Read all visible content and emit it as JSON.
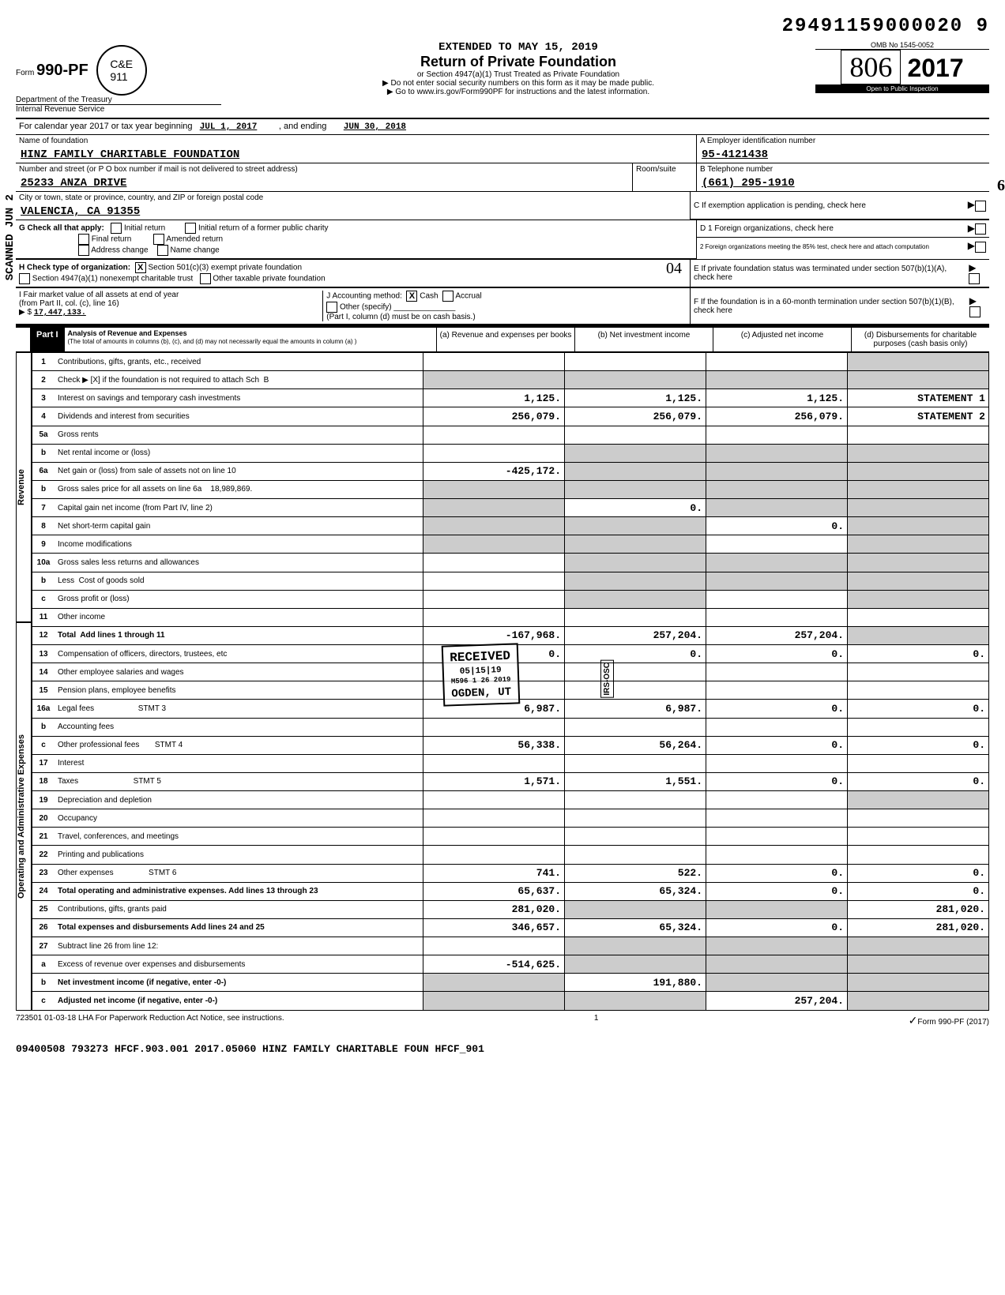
{
  "doc_number": "29491159000020 9",
  "extended_to": "EXTENDED TO MAY 15, 2019",
  "form": {
    "prefix": "Form",
    "number": "990-PF",
    "dept": "Department of the Treasury",
    "irs": "Internal Revenue Service",
    "title": "Return of Private Foundation",
    "subtitle1": "or Section 4947(a)(1) Trust Treated as Private Foundation",
    "subtitle2": "▶ Do not enter social security numbers on this form as it may be made public.",
    "subtitle3": "▶ Go to www.irs.gov/Form990PF for instructions and the latest information.",
    "omb": "OMB No  1545-0052",
    "year": "2017",
    "open": "Open to Public Inspection",
    "script_num": "806"
  },
  "cal_year": {
    "prefix": "For calendar year 2017 or tax year beginning",
    "begin": "JUL 1, 2017",
    "mid": ", and ending",
    "end": "JUN 30, 2018"
  },
  "foundation": {
    "name_label": "Name of foundation",
    "name": "HINZ FAMILY CHARITABLE FOUNDATION",
    "addr_label": "Number and street (or P O  box number if mail is not delivered to street address)",
    "room_label": "Room/suite",
    "addr": "25233 ANZA DRIVE",
    "city_label": "City or town, state or province, country, and ZIP or foreign postal code",
    "city": "VALENCIA, CA  91355"
  },
  "ein": {
    "label": "A Employer identification number",
    "value": "95-4121438"
  },
  "phone": {
    "label": "B Telephone number",
    "value": "(661) 295-1910"
  },
  "c_label": "C  If exemption application is pending, check here",
  "g": {
    "label": "G  Check all that apply:",
    "opts": [
      "Initial return",
      "Final return",
      "Address change",
      "Initial return of a former public charity",
      "Amended return",
      "Name change"
    ]
  },
  "d1": "D 1  Foreign organizations, check here",
  "d2": "2  Foreign organizations meeting the 85% test, check here and attach computation",
  "h": {
    "label": "H  Check type of organization:",
    "opt1": "Section 501(c)(3) exempt private foundation",
    "opt2": "Section 4947(a)(1) nonexempt charitable trust",
    "opt3": "Other taxable private foundation"
  },
  "e_label": "E  If private foundation status was terminated under section 507(b)(1)(A), check here",
  "i": {
    "label": "I  Fair market value of all assets at end of year",
    "sub": "(from Part II, col. (c), line 16)",
    "arrow": "▶ $",
    "value": "17,447,133."
  },
  "j": {
    "label": "J  Accounting method:",
    "cash": "Cash",
    "accrual": "Accrual",
    "other": "Other (specify)",
    "note": "(Part I, column (d) must be on cash basis.)"
  },
  "f_label": "F  If the foundation is in a 60-month termination under section 507(b)(1)(B), check here",
  "part1": {
    "label": "Part I",
    "title": "Analysis of Revenue and Expenses",
    "note": "(The total of amounts in columns (b), (c), and (d) may not necessarily equal the amounts in column (a) )",
    "cols": {
      "a": "(a) Revenue and expenses per books",
      "b": "(b) Net investment income",
      "c": "(c) Adjusted net income",
      "d": "(d) Disbursements for charitable purposes (cash basis only)"
    }
  },
  "side_revenue": "Revenue",
  "side_expenses": "Operating and Administrative Expenses",
  "lines": [
    {
      "n": "1",
      "label": "Contributions, gifts, grants, etc., received",
      "a": "",
      "b": "",
      "c": "",
      "d": "",
      "d_shade": true
    },
    {
      "n": "2",
      "label": "Check ▶ [X] if the foundation is not required to attach Sch  B",
      "a": "",
      "b": "",
      "c": "",
      "d": "",
      "all_shade": true
    },
    {
      "n": "3",
      "label": "Interest on savings and temporary cash investments",
      "a": "1,125.",
      "b": "1,125.",
      "c": "1,125.",
      "d": "STATEMENT 1",
      "d_shade": false
    },
    {
      "n": "4",
      "label": "Dividends and interest from securities",
      "a": "256,079.",
      "b": "256,079.",
      "c": "256,079.",
      "d": "STATEMENT 2",
      "d_shade": false
    },
    {
      "n": "5a",
      "label": "Gross rents",
      "a": "",
      "b": "",
      "c": "",
      "d": "",
      "d_shade": false
    },
    {
      "n": "b",
      "label": "Net rental income or (loss)",
      "a": "",
      "b": "",
      "c": "",
      "d": "",
      "bcd_shade": true
    },
    {
      "n": "6a",
      "label": "Net gain or (loss) from sale of assets not on line 10",
      "a": "-425,172.",
      "b": "",
      "c": "",
      "d": "",
      "bcd_shade": true
    },
    {
      "n": "b",
      "label": "Gross sales price for all assets on line 6a    18,989,869.",
      "a": "",
      "b": "",
      "c": "",
      "d": "",
      "all_shade": true
    },
    {
      "n": "7",
      "label": "Capital gain net income (from Part IV, line 2)",
      "a": "",
      "b": "0.",
      "c": "",
      "d": "",
      "acd_shade": true
    },
    {
      "n": "8",
      "label": "Net short-term capital gain",
      "a": "",
      "b": "",
      "c": "0.",
      "d": "",
      "abd_shade": true
    },
    {
      "n": "9",
      "label": "Income modifications",
      "a": "",
      "b": "",
      "c": "",
      "d": "",
      "abd_shade": true
    },
    {
      "n": "10a",
      "label": "Gross sales less returns and allowances",
      "a": "",
      "b": "",
      "c": "",
      "d": "",
      "bcd_shade": true
    },
    {
      "n": "b",
      "label": "Less  Cost of goods sold",
      "a": "",
      "b": "",
      "c": "",
      "d": "",
      "bcd_shade": true
    },
    {
      "n": "c",
      "label": "Gross profit or (loss)",
      "a": "",
      "b": "",
      "c": "",
      "d": "",
      "bd_shade": true
    },
    {
      "n": "11",
      "label": "Other income",
      "a": "",
      "b": "",
      "c": "",
      "d": "",
      "d_shade": false
    },
    {
      "n": "12",
      "label": "Total  Add lines 1 through 11",
      "a": "-167,968.",
      "b": "257,204.",
      "c": "257,204.",
      "d": "",
      "d_shade": true,
      "bold": true
    },
    {
      "n": "13",
      "label": "Compensation of officers, directors, trustees, etc",
      "a": "0.",
      "b": "0.",
      "c": "0.",
      "d": "0."
    },
    {
      "n": "14",
      "label": "Other employee salaries and wages",
      "a": "",
      "b": "",
      "c": "",
      "d": ""
    },
    {
      "n": "15",
      "label": "Pension plans, employee benefits",
      "a": "",
      "b": "",
      "c": "",
      "d": ""
    },
    {
      "n": "16a",
      "label": "Legal fees                    STMT 3",
      "a": "6,987.",
      "b": "6,987.",
      "c": "0.",
      "d": "0."
    },
    {
      "n": "b",
      "label": "Accounting fees",
      "a": "",
      "b": "",
      "c": "",
      "d": ""
    },
    {
      "n": "c",
      "label": "Other professional fees       STMT 4",
      "a": "56,338.",
      "b": "56,264.",
      "c": "0.",
      "d": "0."
    },
    {
      "n": "17",
      "label": "Interest",
      "a": "",
      "b": "",
      "c": "",
      "d": ""
    },
    {
      "n": "18",
      "label": "Taxes                         STMT 5",
      "a": "1,571.",
      "b": "1,551.",
      "c": "0.",
      "d": "0."
    },
    {
      "n": "19",
      "label": "Depreciation and depletion",
      "a": "",
      "b": "",
      "c": "",
      "d": "",
      "d_shade": true
    },
    {
      "n": "20",
      "label": "Occupancy",
      "a": "",
      "b": "",
      "c": "",
      "d": ""
    },
    {
      "n": "21",
      "label": "Travel, conferences, and meetings",
      "a": "",
      "b": "",
      "c": "",
      "d": ""
    },
    {
      "n": "22",
      "label": "Printing and publications",
      "a": "",
      "b": "",
      "c": "",
      "d": ""
    },
    {
      "n": "23",
      "label": "Other expenses                STMT 6",
      "a": "741.",
      "b": "522.",
      "c": "0.",
      "d": "0."
    },
    {
      "n": "24",
      "label": "Total operating and administrative expenses. Add lines 13 through 23",
      "a": "65,637.",
      "b": "65,324.",
      "c": "0.",
      "d": "0.",
      "bold": true
    },
    {
      "n": "25",
      "label": "Contributions, gifts, grants paid",
      "a": "281,020.",
      "b": "",
      "c": "",
      "d": "281,020.",
      "bc_shade": true
    },
    {
      "n": "26",
      "label": "Total expenses and disbursements Add lines 24 and 25",
      "a": "346,657.",
      "b": "65,324.",
      "c": "0.",
      "d": "281,020.",
      "bold": true
    },
    {
      "n": "27",
      "label": "Subtract line 26 from line 12:",
      "a": "",
      "b": "",
      "c": "",
      "d": "",
      "bcd_shade": true
    },
    {
      "n": "a",
      "label": "Excess of revenue over expenses and disbursements",
      "a": "-514,625.",
      "b": "",
      "c": "",
      "d": "",
      "bcd_shade": true
    },
    {
      "n": "b",
      "label": "Net investment income (if negative, enter -0-)",
      "a": "",
      "b": "191,880.",
      "c": "",
      "d": "",
      "acd_shade": true,
      "bold": true
    },
    {
      "n": "c",
      "label": "Adjusted net income (if negative, enter -0-)",
      "a": "",
      "b": "",
      "c": "257,204.",
      "d": "",
      "abd_shade": true,
      "bold": true
    }
  ],
  "stamp": {
    "received": "RECEIVED",
    "date": "05|15|19",
    "code": "M596 1 26 2019",
    "place": "OGDEN, UT",
    "irs": "IRS-OSC"
  },
  "footer": {
    "left": "723501 01-03-18   LHA  For Paperwork Reduction Act Notice, see instructions.",
    "page": "1",
    "right": "Form 990-PF (2017)"
  },
  "bottom": "09400508 793273 HFCF.903.001  2017.05060 HINZ FAMILY CHARITABLE FOUN HFCF_901",
  "margin_stamp": "SCANNED JUN 2",
  "hand_04": "04",
  "hand_6": "6"
}
